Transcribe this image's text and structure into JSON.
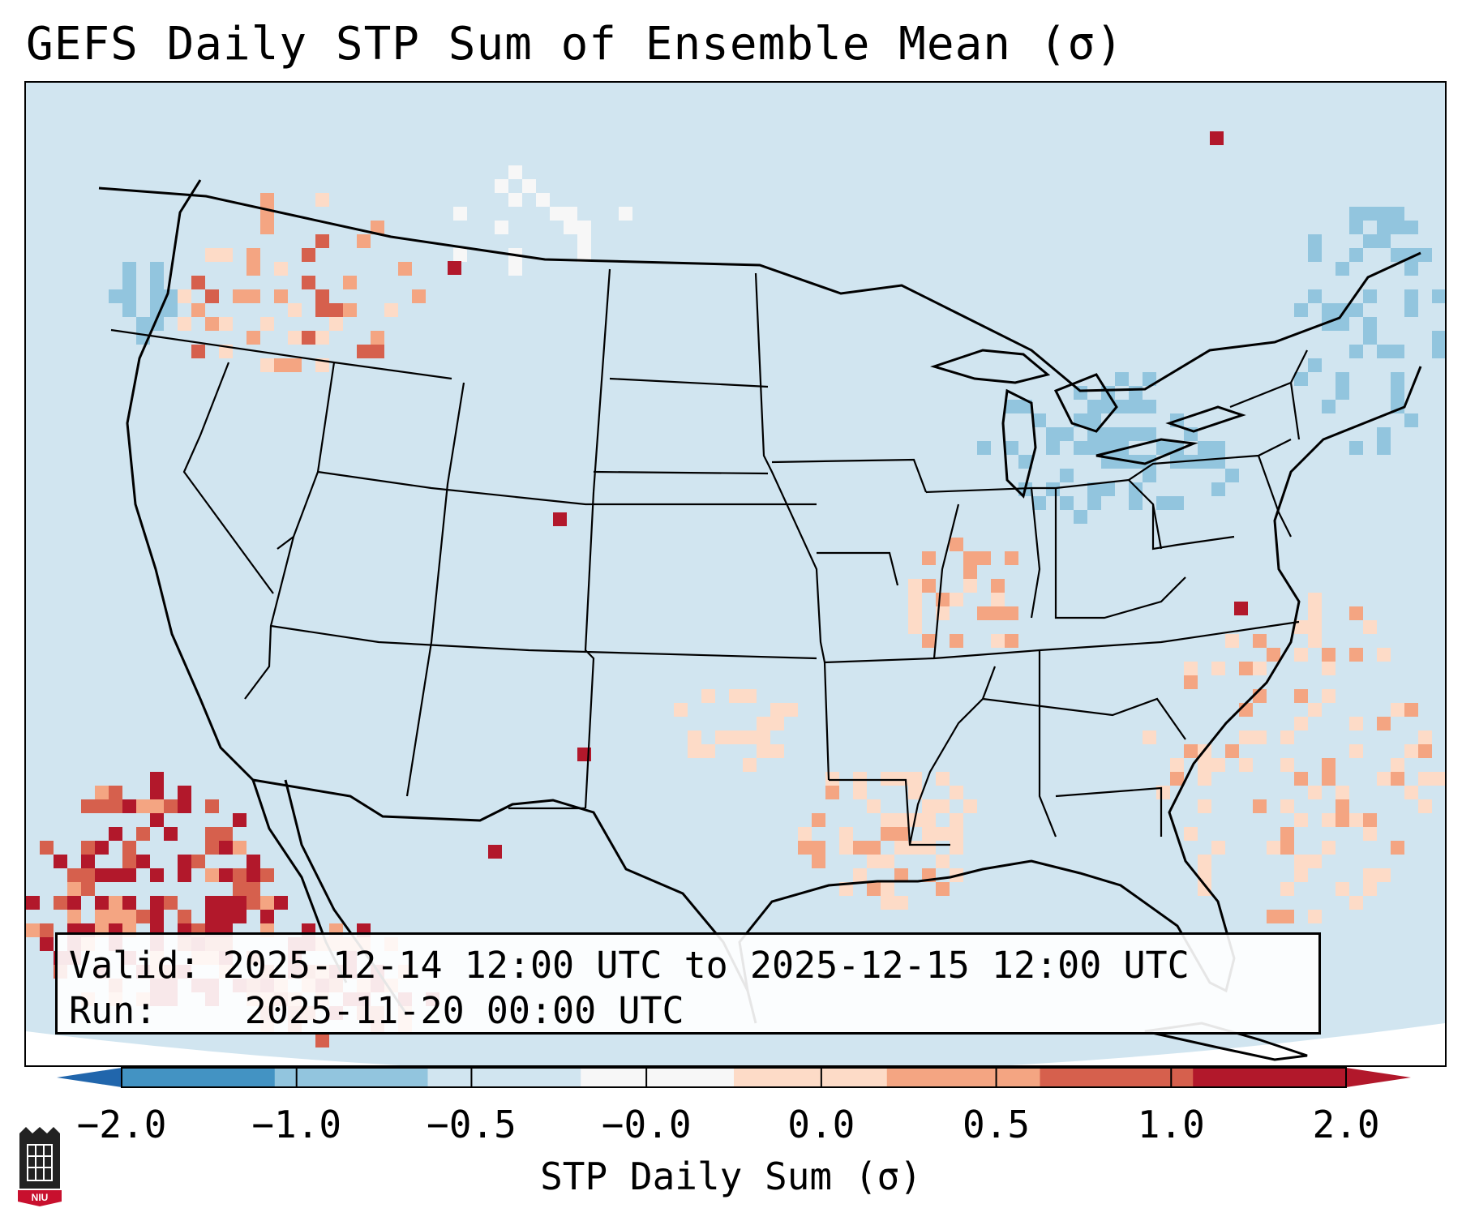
{
  "title": "GEFS Daily STP Sum of Ensemble Mean (σ)",
  "info": {
    "valid_label": "Valid:",
    "valid_value": "2025-12-14 12:00 UTC to 2025-12-15 12:00 UTC",
    "run_label": "Run:",
    "run_value": "2025-11-20 00:00 UTC"
  },
  "colorbar": {
    "label": "STP Daily Sum (σ)",
    "ticks": [
      "−2.0",
      "−1.0",
      "−0.5",
      "−0.0",
      "0.0",
      "0.5",
      "1.0",
      "2.0"
    ],
    "bin_colors": [
      "#4393c3",
      "#92c5de",
      "#d1e5f0",
      "#f7f7f7",
      "#fddbc7",
      "#f4a582",
      "#d6604d",
      "#b2182b"
    ],
    "under_color": "#2166ac",
    "over_color": "#b2182b"
  },
  "map": {
    "background_color": "#d1e5f0",
    "region": "CONUS"
  },
  "logo_text": "NIU"
}
